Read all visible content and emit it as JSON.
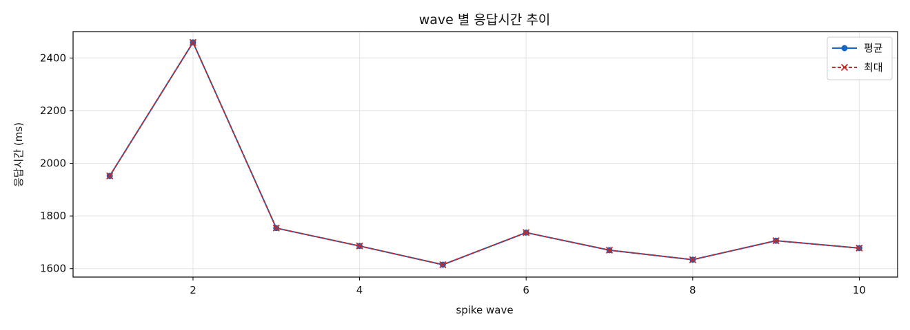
{
  "chart_data": {
    "type": "line",
    "title": "wave 별 응답시간 추이",
    "xlabel": "spike wave",
    "ylabel": "응답시간 (ms)",
    "xlim": [
      0.56,
      10.46
    ],
    "ylim": [
      1568,
      2500
    ],
    "xticks": [
      2,
      4,
      6,
      8,
      10
    ],
    "yticks": [
      1600,
      1800,
      2000,
      2200,
      2400
    ],
    "grid": true,
    "legend_position": "top-right",
    "x": [
      1,
      2,
      3,
      4,
      5,
      6,
      7,
      8,
      9,
      10
    ],
    "series": [
      {
        "name": "평균",
        "values": [
          1952,
          2459,
          1754,
          1686,
          1615,
          1737,
          1670,
          1634,
          1706,
          1678
        ],
        "color": "#1565c0",
        "line_style": "solid",
        "marker": "circle"
      },
      {
        "name": "최대",
        "values": [
          1952,
          2459,
          1754,
          1686,
          1615,
          1737,
          1670,
          1634,
          1706,
          1678
        ],
        "color": "#c62828",
        "line_style": "dashed",
        "marker": "x"
      }
    ]
  }
}
